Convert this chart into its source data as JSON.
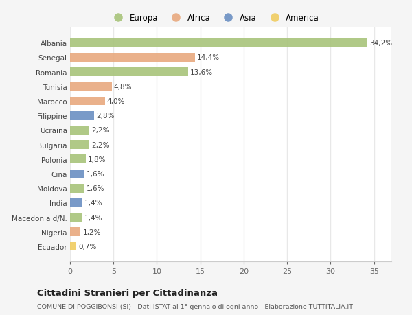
{
  "countries": [
    "Albania",
    "Senegal",
    "Romania",
    "Tunisia",
    "Marocco",
    "Filippine",
    "Ucraina",
    "Bulgaria",
    "Polonia",
    "Cina",
    "Moldova",
    "India",
    "Macedonia d/N.",
    "Nigeria",
    "Ecuador"
  ],
  "values": [
    34.2,
    14.4,
    13.6,
    4.8,
    4.0,
    2.8,
    2.2,
    2.2,
    1.8,
    1.6,
    1.6,
    1.4,
    1.4,
    1.2,
    0.7
  ],
  "labels": [
    "34,2%",
    "14,4%",
    "13,6%",
    "4,8%",
    "4,0%",
    "2,8%",
    "2,2%",
    "2,2%",
    "1,8%",
    "1,6%",
    "1,6%",
    "1,4%",
    "1,4%",
    "1,2%",
    "0,7%"
  ],
  "continents": [
    "Europa",
    "Africa",
    "Europa",
    "Africa",
    "Africa",
    "Asia",
    "Europa",
    "Europa",
    "Europa",
    "Asia",
    "Europa",
    "Asia",
    "Europa",
    "Africa",
    "America"
  ],
  "continent_colors": {
    "Europa": "#a8c47a",
    "Africa": "#e8a97e",
    "Asia": "#6b8fc2",
    "America": "#f0cc60"
  },
  "legend_order": [
    "Europa",
    "Africa",
    "Asia",
    "America"
  ],
  "bg_color": "#f5f5f5",
  "plot_bg_color": "#ffffff",
  "grid_color": "#e8e8e8",
  "title": "Cittadini Stranieri per Cittadinanza",
  "subtitle": "COMUNE DI POGGIBONSI (SI) - Dati ISTAT al 1° gennaio di ogni anno - Elaborazione TUTTITALIA.IT",
  "xlim": [
    0,
    37
  ],
  "xticks": [
    0,
    5,
    10,
    15,
    20,
    25,
    30,
    35
  ]
}
